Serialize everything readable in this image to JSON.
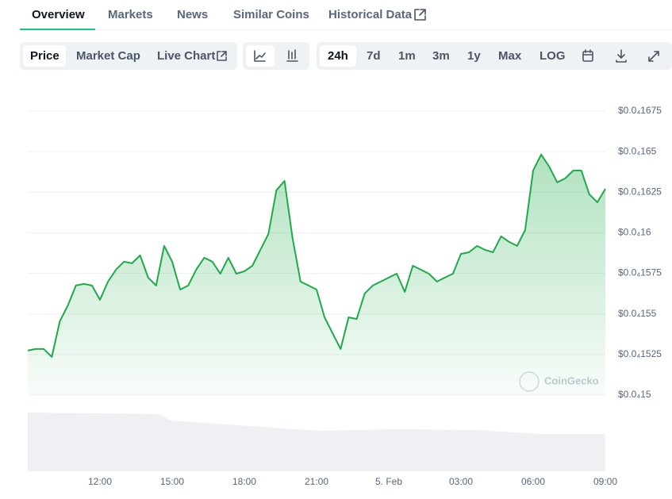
{
  "tabs": [
    "Overview",
    "Markets",
    "News",
    "Similar Coins",
    "Historical Data"
  ],
  "chart_tabs": [
    "Price",
    "Market Cap",
    "Live Chart"
  ],
  "ranges": [
    "24h",
    "7d",
    "1m",
    "3m",
    "1y",
    "Max",
    "LOG"
  ],
  "chart_data": {
    "type": "line",
    "color": "#1eaa48",
    "watermark": "CoinGecko",
    "grid": true,
    "categories": [
      null,
      null,
      null,
      null,
      null,
      null,
      null,
      null,
      null,
      "12:00",
      null,
      null,
      null,
      null,
      null,
      null,
      null,
      null,
      "15:00",
      null,
      null,
      null,
      null,
      null,
      null,
      null,
      null,
      "18:00",
      null,
      null,
      null,
      null,
      null,
      null,
      null,
      null,
      "21:00",
      null,
      null,
      null,
      null,
      null,
      null,
      null,
      null,
      "5. Feb",
      null,
      null,
      null,
      null,
      null,
      null,
      null,
      null,
      "03:00",
      null,
      null,
      null,
      null,
      null,
      null,
      null,
      null,
      "06:00",
      null,
      null,
      null,
      null,
      null,
      null,
      null,
      null,
      "09:00"
    ],
    "values": [
      1.5274e-05,
      1.5284e-05,
      1.5284e-05,
      1.5235e-05,
      1.5455e-05,
      1.5553e-05,
      1.5675e-05,
      1.5685e-05,
      1.5675e-05,
      1.5587e-05,
      1.5699e-05,
      1.5773e-05,
      1.5822e-05,
      1.5812e-05,
      1.5861e-05,
      1.5724e-05,
      1.5675e-05,
      1.5919e-05,
      1.5822e-05,
      1.565e-05,
      1.5675e-05,
      1.5773e-05,
      1.5846e-05,
      1.5822e-05,
      1.5748e-05,
      1.5846e-05,
      1.5748e-05,
      1.5763e-05,
      1.5797e-05,
      1.5895e-05,
      1.5993e-05,
      1.6262e-05,
      1.632e-05,
      1.5968e-05,
      1.5699e-05,
      1.5675e-05,
      1.565e-05,
      1.5479e-05,
      1.5381e-05,
      1.5284e-05,
      1.5479e-05,
      1.5469e-05,
      1.5626e-05,
      1.5675e-05,
      1.5699e-05,
      1.5724e-05,
      1.5748e-05,
      1.5636e-05,
      1.5797e-05,
      1.5773e-05,
      1.5748e-05,
      1.5699e-05,
      1.5724e-05,
      1.5748e-05,
      1.587e-05,
      1.588e-05,
      1.5919e-05,
      1.5895e-05,
      1.588e-05,
      1.5978e-05,
      1.5944e-05,
      1.5919e-05,
      1.6017e-05,
      1.6384e-05,
      1.6482e-05,
      1.6408e-05,
      1.6311e-05,
      1.6335e-05,
      1.6384e-05,
      1.6384e-05,
      1.6237e-05,
      1.6188e-05,
      1.6271e-05
    ],
    "ylim": [
      1.5e-05,
      1.675e-05
    ],
    "yticks": [
      {
        "value": 1.5e-05,
        "label": "$0.0₄15"
      },
      {
        "value": 1.525e-05,
        "label": "$0.0₄1525"
      },
      {
        "value": 1.55e-05,
        "label": "$0.0₄155"
      },
      {
        "value": 1.575e-05,
        "label": "$0.0₄1575"
      },
      {
        "value": 1.6e-05,
        "label": "$0.0₄16"
      },
      {
        "value": 1.625e-05,
        "label": "$0.0₄1625"
      },
      {
        "value": 1.65e-05,
        "label": "$0.0₄165"
      },
      {
        "value": 1.675e-05,
        "label": "$0.0₄1675"
      }
    ]
  }
}
